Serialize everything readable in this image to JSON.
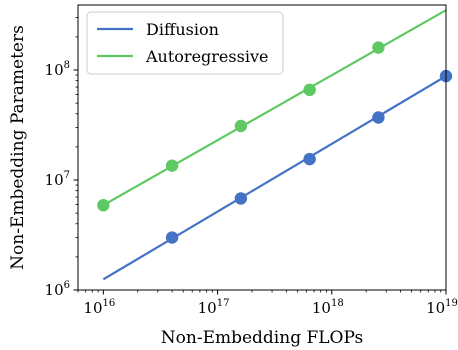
{
  "chart_data": {
    "type": "line",
    "title": "",
    "xlabel": "Non-Embedding FLOPs",
    "ylabel": "Non-Embedding Parameters",
    "x_scale": "log",
    "y_scale": "log",
    "xlim": [
      6000000000000000.0,
      1e+19
    ],
    "ylim": [
      1000000.0,
      390000000.0
    ],
    "grid": false,
    "legend_position": "top-left",
    "x_ticks": [
      {
        "base": "10",
        "exp": "16",
        "value": 1e+16
      },
      {
        "base": "10",
        "exp": "17",
        "value": 1e+17
      },
      {
        "base": "10",
        "exp": "18",
        "value": 1e+18
      },
      {
        "base": "10",
        "exp": "19",
        "value": 1e+19
      }
    ],
    "y_ticks": [
      {
        "base": "10",
        "exp": "6",
        "value": 1000000.0
      },
      {
        "base": "10",
        "exp": "7",
        "value": 10000000.0
      },
      {
        "base": "10",
        "exp": "8",
        "value": 100000000.0
      }
    ],
    "series": [
      {
        "name": "Diffusion",
        "color": "#4472c4",
        "points_x": [
          4e+16,
          1.6e+17,
          6.4e+17,
          2.56e+18,
          1e+19
        ],
        "points_y": [
          3000000.0,
          6800000.0,
          15500000.0,
          37000000.0,
          88000000.0
        ],
        "fit_x": [
          1e+16,
          1e+19
        ],
        "fit_y": [
          1250000.0,
          88000000.0
        ]
      },
      {
        "name": "Autoregressive",
        "color": "#5ec962",
        "points_x": [
          1e+16,
          4e+16,
          1.6e+17,
          6.4e+17,
          2.56e+18
        ],
        "points_y": [
          5900000.0,
          13500000.0,
          31000000.0,
          66000000.0,
          160000000.0
        ],
        "fit_x": [
          1e+16,
          1e+19
        ],
        "fit_y": [
          5900000.0,
          350000000.0
        ]
      }
    ]
  }
}
